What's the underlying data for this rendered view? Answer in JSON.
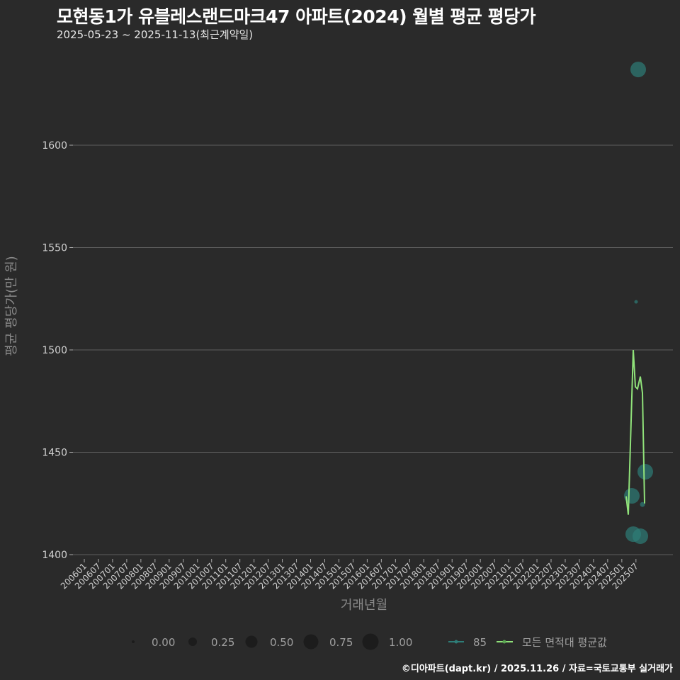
{
  "header": {
    "title": "모현동1가 유블레스랜드마크47 아파트(2024) 월별 평균 평당가",
    "subtitle": "2025-05-23 ~ 2025-11-13(최근계약일)"
  },
  "footer": {
    "credit": "©디아파트(dapt.kr) / 2025.11.26 / 자료=국토교통부 실거래가"
  },
  "colors": {
    "background": "#2a2a2a",
    "grid": "#5e5e5e",
    "series_85": "#2e7d78",
    "series_avg": "#90e27a",
    "text": "#cfcfcf"
  },
  "chart_data": {
    "type": "scatter",
    "title": "모현동1가 유블레스랜드마크47 아파트(2024) 월별 평균 평당가",
    "subtitle": "2025-05-23 ~ 2025-11-13(최근계약일)",
    "xlabel": "거래년월",
    "ylabel": "평균 평당가(만 원)",
    "ylim": [
      1400,
      1645
    ],
    "yticks": [
      1400,
      1450,
      1500,
      1550,
      1600
    ],
    "grid": true,
    "legend_position": "bottom",
    "xtick_labels": [
      "200601",
      "200607",
      "200701",
      "200707",
      "200801",
      "200807",
      "200901",
      "200907",
      "201001",
      "201007",
      "201101",
      "201107",
      "201201",
      "201207",
      "201301",
      "201307",
      "201401",
      "201407",
      "201501",
      "201507",
      "201601",
      "201607",
      "201701",
      "201707",
      "201801",
      "201807",
      "201901",
      "201907",
      "202001",
      "202007",
      "202101",
      "202107",
      "202201",
      "202207",
      "202301",
      "202307",
      "202401",
      "202407",
      "202501",
      "202507"
    ],
    "size_legend": {
      "title": "",
      "values": [
        "0.00",
        "0.25",
        "0.50",
        "0.75",
        "1.00"
      ]
    },
    "series": [
      {
        "name": "85",
        "kind": "bubble",
        "color": "#2e7d78",
        "points": [
          {
            "x": "202505",
            "y": 1428.7,
            "size": 0.8
          },
          {
            "x": "202506",
            "y": 1410.0,
            "size": 0.8
          },
          {
            "x": "202507",
            "y": 1637.0,
            "size": 0.8
          },
          {
            "x": "202507",
            "y": 1523.5,
            "size": 0.05
          },
          {
            "x": "202508",
            "y": 1409.0,
            "size": 0.8
          },
          {
            "x": "202509",
            "y": 1424.5,
            "size": 0.1
          },
          {
            "x": "202510",
            "y": 1440.5,
            "size": 0.8
          }
        ]
      },
      {
        "name": "모든 면적대 평균값",
        "kind": "line",
        "color": "#90e27a",
        "points": [
          {
            "x": "202505a",
            "y": 1428.5
          },
          {
            "x": "202505b",
            "y": 1419.5
          },
          {
            "x": "202506",
            "y": 1500.0
          },
          {
            "x": "202507a",
            "y": 1482.0
          },
          {
            "x": "202507b",
            "y": 1481.0
          },
          {
            "x": "202508a",
            "y": 1487.0
          },
          {
            "x": "202508b",
            "y": 1479.0
          },
          {
            "x": "202510",
            "y": 1425.0
          }
        ]
      }
    ]
  },
  "legend": {
    "size_labels": [
      "0.00",
      "0.25",
      "0.50",
      "0.75",
      "1.00"
    ],
    "series_labels": [
      "85",
      "모든 면적대 평균값"
    ]
  }
}
